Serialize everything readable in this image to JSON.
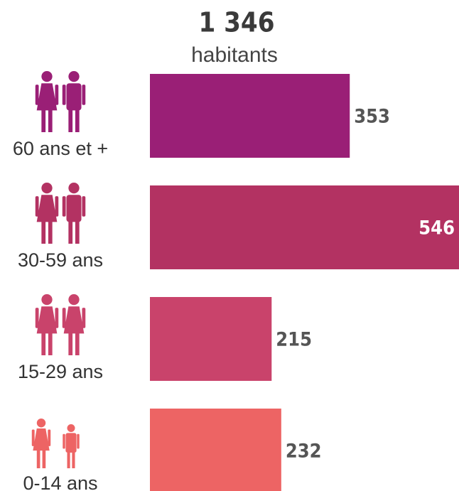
{
  "chart_data": {
    "type": "bar",
    "orientation": "horizontal",
    "title": "1 346",
    "subtitle": "habitants",
    "categories": [
      "60 ans et +",
      "30-59 ans",
      "15-29 ans",
      "0-14 ans"
    ],
    "values": [
      353,
      546,
      215,
      232
    ],
    "colors": [
      "#9a1f76",
      "#b33262",
      "#c9436b",
      "#ed6464"
    ]
  }
}
